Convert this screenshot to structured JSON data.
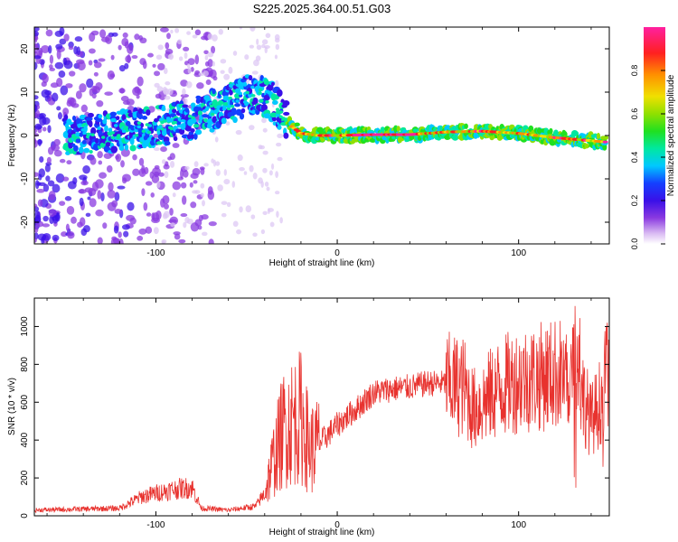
{
  "title": "S225.2025.364.00.51.G03",
  "chart_data": [
    {
      "type": "heatmap",
      "xlabel": "Height of straight line (km)",
      "ylabel": "Frequency (Hz)",
      "xlim": [
        -167,
        150
      ],
      "ylim": [
        -25,
        25
      ],
      "x_ticks": [
        -100,
        0,
        100
      ],
      "y_ticks": [
        -20,
        -10,
        0,
        10,
        20
      ],
      "colorbar": {
        "label": "Normalized spectral amplitude",
        "range": [
          0,
          1
        ],
        "ticks": [
          0.0,
          0.2,
          0.4,
          0.6,
          0.8
        ]
      },
      "ridge": {
        "description_points_height_km": [
          -140,
          -120,
          -100,
          -80,
          -60,
          -45,
          -35,
          -28,
          -20,
          -10,
          0,
          20,
          40,
          60,
          80,
          100,
          120,
          140,
          148
        ],
        "description_points_freq_hz": [
          0,
          1,
          2,
          4,
          7,
          10,
          8,
          3,
          0.5,
          0,
          0,
          0.2,
          0.2,
          0.8,
          1,
          0.5,
          -0.5,
          -1.2,
          -1.5
        ]
      }
    },
    {
      "type": "line",
      "xlabel": "Height of straight line (km)",
      "ylabel": "SNR (10 * v/v)",
      "xlim": [
        -167,
        150
      ],
      "ylim": [
        0,
        1150
      ],
      "x_ticks": [
        -100,
        0,
        100
      ],
      "y_ticks": [
        0,
        200,
        400,
        600,
        800,
        1000
      ],
      "color": "#e8322e",
      "envelope_x": [
        -167,
        -120,
        -108,
        -100,
        -90,
        -80,
        -75,
        -60,
        -45,
        -40,
        -35,
        -30,
        -25,
        -20,
        -15,
        -10,
        0,
        10,
        20,
        30,
        40,
        50,
        60,
        70,
        75,
        80,
        90,
        100,
        110,
        120,
        130,
        135,
        140,
        145,
        150
      ],
      "envelope_y": [
        30,
        40,
        100,
        120,
        140,
        150,
        40,
        30,
        50,
        120,
        300,
        450,
        500,
        520,
        350,
        380,
        480,
        560,
        650,
        670,
        680,
        700,
        700,
        680,
        560,
        600,
        680,
        720,
        730,
        750,
        760,
        650,
        500,
        600,
        800
      ]
    }
  ]
}
